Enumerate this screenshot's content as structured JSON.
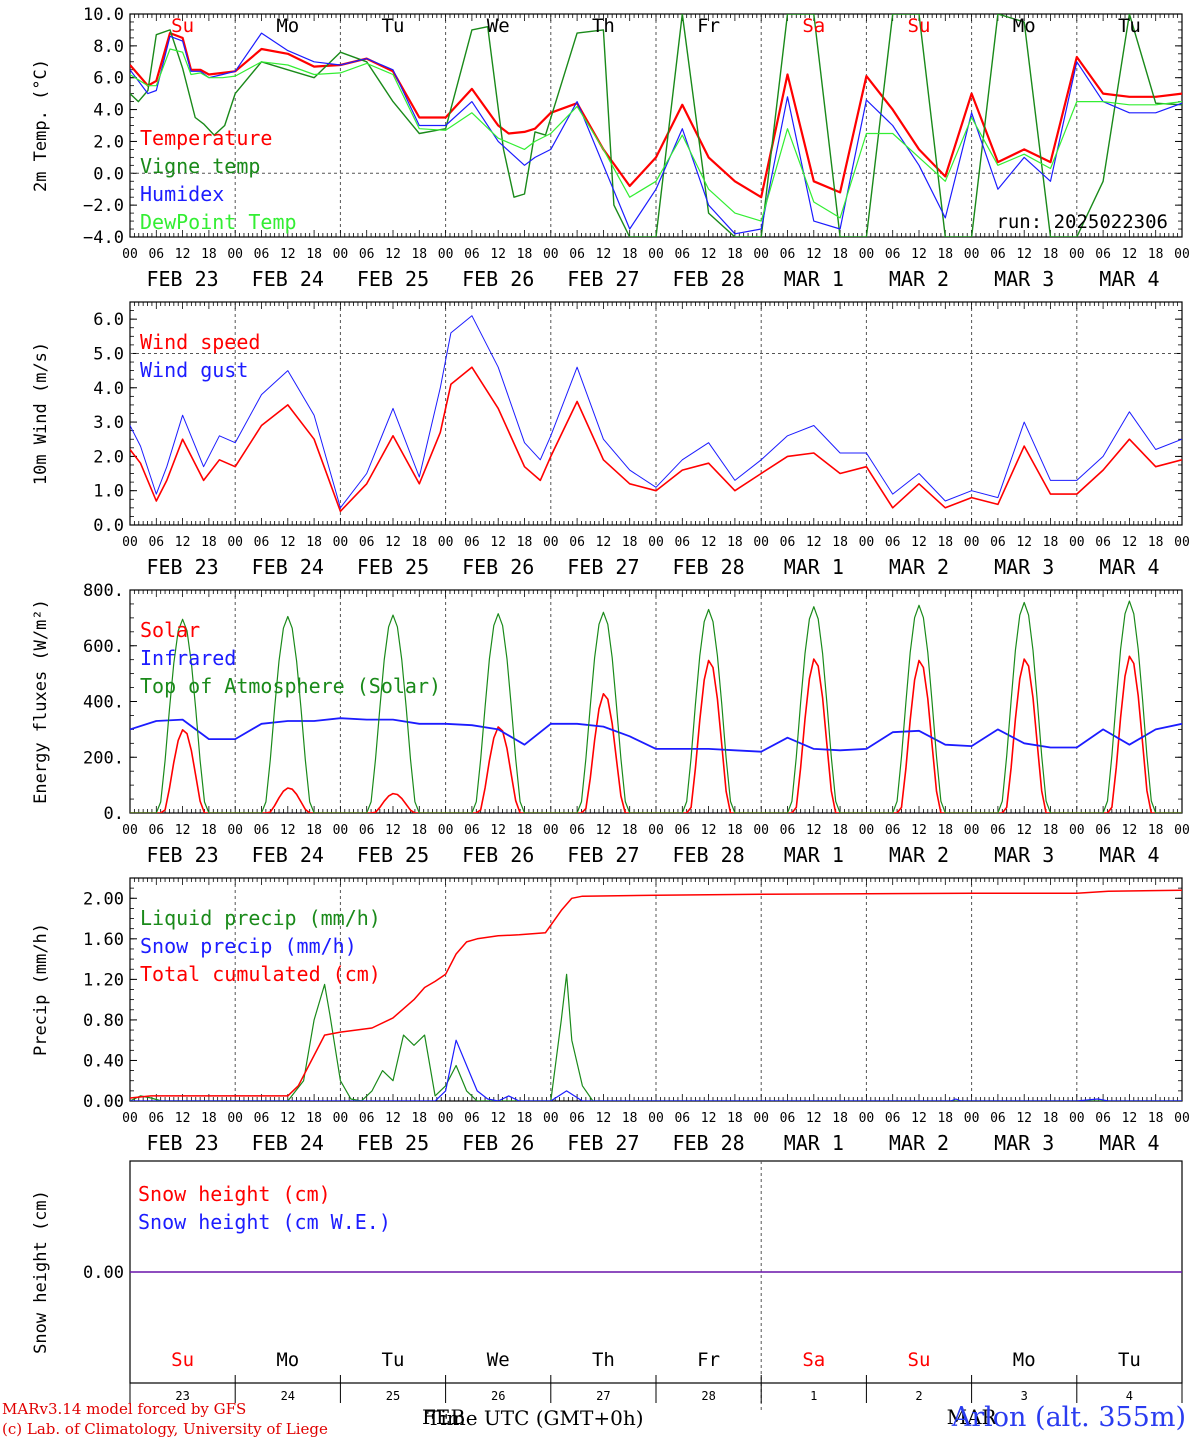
{
  "colors": {
    "red": "#ff0000",
    "green": "#1a8a1a",
    "blue": "#1c1cff",
    "lightgreen": "#33ee33",
    "grid": "#555555"
  },
  "run_label": "run: 2025022306",
  "day_names": [
    "Su",
    "Mo",
    "Tu",
    "We",
    "Th",
    "Fr",
    "Sa",
    "Su",
    "Mo",
    "Tu"
  ],
  "weekend_flags": [
    true,
    false,
    false,
    false,
    false,
    false,
    true,
    true,
    false,
    false
  ],
  "date_labels": [
    "FEB 23",
    "FEB 24",
    "FEB 25",
    "FEB 26",
    "FEB 27",
    "FEB 28",
    "MAR  1",
    "MAR  2",
    "MAR  3",
    "MAR  4"
  ],
  "hour_ticks": [
    "00",
    "06",
    "12",
    "18"
  ],
  "last_hour_tick": "00",
  "day_numbers": [
    "23",
    "24",
    "25",
    "26",
    "27",
    "28",
    "1",
    "2",
    "3",
    "4"
  ],
  "footer": {
    "credit_line1": "MARv3.14 model forced by GFS",
    "credit_line2": "(c) Lab. of Climatology, University of Liege",
    "month_feb": "FEB",
    "month_mar": "MAR",
    "xlabel": "Time UTC (GMT+0h)",
    "station": "Arlon (alt. 355m)"
  },
  "chart_data": [
    {
      "type": "line",
      "ylabel": "2m Temp. (°C)",
      "ylim": [
        -4,
        10
      ],
      "yticks": [
        "10.0",
        "8.0",
        "6.0",
        "4.0",
        "2.0",
        "0.0",
        "−2.0",
        "−4.0"
      ],
      "xlim_days": [
        0,
        10
      ],
      "legend_placement": "top-left",
      "series": [
        {
          "name": "Temperature",
          "color": "red",
          "width": 2.2,
          "x": [
            0,
            0.17,
            0.25,
            0.38,
            0.5,
            0.58,
            0.67,
            0.75,
            0.88,
            1,
            1.25,
            1.5,
            1.75,
            2,
            2.25,
            2.5,
            2.75,
            3,
            3.25,
            3.5,
            3.6,
            3.75,
            3.85,
            4,
            4.25,
            4.5,
            4.75,
            5,
            5.25,
            5.5,
            5.75,
            6,
            6.25,
            6.5,
            6.75,
            7,
            7.25,
            7.5,
            7.75,
            8,
            8.25,
            8.5,
            8.75,
            9,
            9.25,
            9.5,
            9.75,
            10
          ],
          "y": [
            6.8,
            5.5,
            5.8,
            8.8,
            8.5,
            6.5,
            6.5,
            6.2,
            6.3,
            6.4,
            7.8,
            7.5,
            6.7,
            6.8,
            7.2,
            6.4,
            3.5,
            3.5,
            5.3,
            3.0,
            2.5,
            2.6,
            2.8,
            3.8,
            4.4,
            1.5,
            -0.8,
            1.0,
            4.3,
            1.0,
            -0.5,
            -1.5,
            6.2,
            -0.5,
            -1.2,
            6.1,
            4.0,
            1.5,
            -0.2,
            5.0,
            0.7,
            1.5,
            0.7,
            7.3,
            5.0,
            4.8,
            4.8,
            5.0
          ]
        },
        {
          "name": "Vigne temp",
          "color": "green",
          "width": 1.4,
          "x": [
            0,
            0.08,
            0.17,
            0.25,
            0.38,
            0.5,
            0.62,
            0.7,
            0.8,
            0.9,
            1,
            1.25,
            1.5,
            1.75,
            2,
            2.25,
            2.5,
            2.75,
            3,
            3.25,
            3.4,
            3.55,
            3.65,
            3.75,
            3.85,
            3.95,
            4.25,
            4.5,
            4.6,
            4.75,
            4.9,
            5,
            5.25,
            5.5,
            5.75,
            6,
            6.25,
            6.5,
            6.75,
            7,
            7.25,
            7.5,
            7.75,
            8,
            8.25,
            8.5,
            8.75,
            9,
            9.25,
            9.5,
            9.75,
            10
          ],
          "y": [
            5.0,
            4.5,
            5.2,
            8.7,
            9.0,
            6.6,
            3.5,
            3.1,
            2.4,
            3.0,
            5.0,
            7.0,
            6.5,
            6.0,
            7.6,
            7.0,
            4.5,
            2.5,
            2.8,
            9.0,
            9.2,
            1.5,
            -1.5,
            -1.3,
            2.6,
            2.4,
            8.8,
            9.0,
            -2.0,
            -4.0,
            -4.0,
            -4.0,
            10.0,
            -2.5,
            -4.0,
            -4.0,
            10.0,
            10.0,
            -4.0,
            -4.0,
            10.0,
            10.0,
            -4.0,
            -4.0,
            10.0,
            9.5,
            -4.0,
            -4.0,
            -0.5,
            10.0,
            4.4,
            4.3
          ]
        },
        {
          "name": "Humidex",
          "color": "blue",
          "width": 1.2,
          "x": [
            0,
            0.17,
            0.25,
            0.38,
            0.5,
            0.58,
            0.67,
            0.75,
            0.88,
            1,
            1.25,
            1.5,
            1.75,
            2,
            2.25,
            2.5,
            2.75,
            3,
            3.25,
            3.5,
            3.75,
            3.85,
            4,
            4.25,
            4.5,
            4.75,
            5,
            5.25,
            5.5,
            5.75,
            6,
            6.25,
            6.5,
            6.75,
            7,
            7.25,
            7.5,
            7.75,
            8,
            8.25,
            8.5,
            8.75,
            9,
            9.25,
            9.5,
            9.75,
            10
          ],
          "y": [
            6.5,
            5.0,
            5.2,
            8.6,
            8.3,
            6.4,
            6.4,
            6.0,
            6.2,
            6.4,
            8.8,
            7.7,
            7.0,
            6.8,
            7.2,
            6.5,
            3.0,
            3.0,
            4.5,
            2.0,
            0.5,
            1.0,
            1.5,
            4.5,
            0.5,
            -3.5,
            -1.0,
            2.8,
            -2.0,
            -3.8,
            -3.5,
            4.8,
            -3.0,
            -3.5,
            4.6,
            3.0,
            0.5,
            -2.8,
            3.8,
            -1.0,
            1.0,
            -0.5,
            7.0,
            4.5,
            3.8,
            3.8,
            4.4
          ]
        },
        {
          "name": "DewPoint Temp",
          "color": "lightgreen",
          "width": 1.2,
          "x": [
            0,
            0.17,
            0.25,
            0.38,
            0.5,
            0.58,
            0.67,
            0.75,
            0.88,
            1,
            1.25,
            1.5,
            1.75,
            2,
            2.25,
            2.5,
            2.75,
            3,
            3.25,
            3.5,
            3.75,
            3.85,
            4,
            4.25,
            4.5,
            4.75,
            5,
            5.25,
            5.5,
            5.75,
            6,
            6.25,
            6.5,
            6.75,
            7,
            7.25,
            7.5,
            7.75,
            8,
            8.25,
            8.5,
            8.75,
            9,
            9.25,
            9.5,
            9.75,
            10
          ],
          "y": [
            6.2,
            5.5,
            5.5,
            7.8,
            7.6,
            6.2,
            6.3,
            6.0,
            6.0,
            6.1,
            7.0,
            6.8,
            6.2,
            6.3,
            6.9,
            6.2,
            2.8,
            2.7,
            3.8,
            2.2,
            1.5,
            2.0,
            2.5,
            4.2,
            1.5,
            -1.5,
            -0.5,
            2.4,
            -1.0,
            -2.5,
            -3.0,
            2.8,
            -1.8,
            -2.8,
            2.5,
            2.5,
            1.0,
            -0.5,
            3.5,
            0.5,
            1.2,
            0.3,
            4.5,
            4.5,
            4.3,
            4.3,
            4.5
          ]
        }
      ],
      "dashed_hlines": [
        0
      ]
    },
    {
      "type": "line",
      "ylabel": "10m Wind (m/s)",
      "ylim": [
        0,
        6.5
      ],
      "yticks": [
        "6.0",
        "5.0",
        "4.0",
        "3.0",
        "2.0",
        "1.0",
        "0.0"
      ],
      "xlim_days": [
        0,
        10
      ],
      "legend_placement": "top-left",
      "series": [
        {
          "name": "Wind speed",
          "color": "red",
          "width": 1.6,
          "x": [
            0,
            0.1,
            0.25,
            0.35,
            0.5,
            0.7,
            0.85,
            1,
            1.25,
            1.5,
            1.75,
            2,
            2.25,
            2.5,
            2.75,
            2.95,
            3.05,
            3.25,
            3.5,
            3.75,
            3.9,
            4,
            4.25,
            4.5,
            4.75,
            5,
            5.25,
            5.5,
            5.75,
            6,
            6.25,
            6.5,
            6.75,
            7,
            7.25,
            7.5,
            7.75,
            8,
            8.25,
            8.5,
            8.75,
            9,
            9.25,
            9.5,
            9.75,
            10
          ],
          "y": [
            2.2,
            1.8,
            0.7,
            1.3,
            2.5,
            1.3,
            1.9,
            1.7,
            2.9,
            3.5,
            2.5,
            0.4,
            1.2,
            2.6,
            1.2,
            2.7,
            4.1,
            4.6,
            3.4,
            1.7,
            1.3,
            2.0,
            3.6,
            1.9,
            1.2,
            1.0,
            1.6,
            1.8,
            1.0,
            1.5,
            2.0,
            2.1,
            1.5,
            1.7,
            0.5,
            1.2,
            0.5,
            0.8,
            0.6,
            2.3,
            0.9,
            0.9,
            1.6,
            2.5,
            1.7,
            1.9
          ]
        },
        {
          "name": "Wind gust",
          "color": "blue",
          "width": 1.0,
          "x": [
            0,
            0.1,
            0.25,
            0.35,
            0.5,
            0.7,
            0.85,
            1,
            1.25,
            1.5,
            1.75,
            2,
            2.25,
            2.5,
            2.75,
            2.95,
            3.05,
            3.25,
            3.5,
            3.75,
            3.9,
            4,
            4.25,
            4.5,
            4.75,
            5,
            5.25,
            5.5,
            5.75,
            6,
            6.25,
            6.5,
            6.75,
            7,
            7.25,
            7.5,
            7.75,
            8,
            8.25,
            8.5,
            8.75,
            9,
            9.25,
            9.5,
            9.75,
            10
          ],
          "y": [
            2.9,
            2.3,
            0.9,
            1.7,
            3.2,
            1.7,
            2.6,
            2.4,
            3.8,
            4.5,
            3.2,
            0.5,
            1.5,
            3.4,
            1.4,
            4.0,
            5.6,
            6.1,
            4.6,
            2.4,
            1.9,
            2.6,
            4.6,
            2.5,
            1.6,
            1.1,
            1.9,
            2.4,
            1.3,
            1.9,
            2.6,
            2.9,
            2.1,
            2.1,
            0.9,
            1.5,
            0.7,
            1.0,
            0.8,
            3.0,
            1.3,
            1.3,
            2.0,
            3.3,
            2.2,
            2.5
          ]
        }
      ],
      "dashed_hlines": [
        5.0
      ]
    },
    {
      "type": "line",
      "ylabel": "Energy fluxes (W/m²)",
      "ylim": [
        0,
        800
      ],
      "yticks": [
        "800.",
        "600.",
        "400.",
        "200.",
        "0."
      ],
      "xlim_days": [
        0,
        10
      ],
      "legend_placement": "top-left",
      "series": [
        {
          "name": "Solar",
          "color": "red",
          "width": 1.6,
          "daily_peaks": [
            300,
            90,
            70,
            310,
            430,
            550,
            555,
            550,
            555,
            565
          ]
        },
        {
          "name": "Infrared",
          "color": "blue",
          "width": 1.8,
          "x": [
            0,
            0.25,
            0.5,
            0.75,
            1,
            1.25,
            1.5,
            1.75,
            2,
            2.25,
            2.5,
            2.75,
            3,
            3.25,
            3.5,
            3.75,
            4,
            4.25,
            4.5,
            4.75,
            5,
            5.25,
            5.5,
            5.75,
            6,
            6.25,
            6.5,
            6.75,
            7,
            7.25,
            7.5,
            7.75,
            8,
            8.25,
            8.5,
            8.75,
            9,
            9.25,
            9.5,
            9.75,
            10
          ],
          "y": [
            300,
            330,
            335,
            265,
            265,
            320,
            330,
            330,
            340,
            335,
            335,
            320,
            320,
            315,
            300,
            245,
            320,
            320,
            310,
            275,
            230,
            230,
            230,
            225,
            220,
            270,
            230,
            225,
            230,
            290,
            295,
            245,
            240,
            300,
            250,
            235,
            235,
            300,
            245,
            300,
            320
          ]
        },
        {
          "name": "Top of Atmosphere (Solar)",
          "color": "green",
          "width": 1.2,
          "daily_peaks": [
            695,
            705,
            710,
            715,
            720,
            730,
            740,
            745,
            755,
            760
          ]
        }
      ]
    },
    {
      "type": "line",
      "ylabel": "Precip (mm/h)",
      "ylim": [
        0,
        2.2
      ],
      "yticks": [
        "2.00",
        "1.60",
        "1.20",
        "0.80",
        "0.40",
        "0.00"
      ],
      "xlim_days": [
        0,
        10
      ],
      "legend_placement": "top-left",
      "series": [
        {
          "name": "Liquid precip (mm/h)",
          "color": "green",
          "width": 1.2,
          "x": [
            0,
            0.1,
            0.2,
            0.3,
            1.5,
            1.65,
            1.75,
            1.85,
            1.9,
            2.0,
            2.1,
            2.2,
            2.3,
            2.4,
            2.5,
            2.6,
            2.7,
            2.8,
            2.9,
            3.0,
            3.1,
            3.2,
            3.3,
            3.5,
            3.7,
            4.0,
            4.1,
            4.15,
            4.2,
            4.3,
            4.4,
            5,
            6,
            7,
            8,
            9,
            10
          ],
          "y": [
            0,
            0.05,
            0.03,
            0,
            0,
            0.2,
            0.8,
            1.15,
            0.85,
            0.2,
            0.02,
            0,
            0.1,
            0.3,
            0.2,
            0.65,
            0.55,
            0.65,
            0.05,
            0.15,
            0.35,
            0.1,
            0,
            0,
            0,
            0,
            0.8,
            1.25,
            0.6,
            0.15,
            0,
            0,
            0,
            0,
            0,
            0,
            0
          ]
        },
        {
          "name": "Snow precip (mm/h)",
          "color": "blue",
          "width": 1.2,
          "x": [
            0,
            2.9,
            3.0,
            3.1,
            3.2,
            3.3,
            3.4,
            3.5,
            3.6,
            3.7,
            4.0,
            4.15,
            4.3,
            6,
            7.8,
            7.85,
            7.9,
            9,
            9.2,
            9.3,
            10
          ],
          "y": [
            0,
            0,
            0.1,
            0.6,
            0.35,
            0.1,
            0.02,
            0,
            0.05,
            0,
            0,
            0.1,
            0,
            0,
            0,
            0.02,
            0,
            0,
            0.02,
            0,
            0
          ]
        },
        {
          "name": "Total cumulated (cm)",
          "color": "red",
          "width": 1.5,
          "x": [
            0,
            0.2,
            1.5,
            1.6,
            1.75,
            1.85,
            2.0,
            2.3,
            2.5,
            2.7,
            2.8,
            2.9,
            3.0,
            3.1,
            3.2,
            3.3,
            3.5,
            3.7,
            3.95,
            4.1,
            4.2,
            4.3,
            5,
            6,
            7,
            8,
            9,
            9.3,
            10
          ],
          "y": [
            0.03,
            0.05,
            0.05,
            0.15,
            0.45,
            0.65,
            0.68,
            0.72,
            0.82,
            1.0,
            1.12,
            1.18,
            1.25,
            1.45,
            1.57,
            1.6,
            1.63,
            1.64,
            1.66,
            1.88,
            2.0,
            2.02,
            2.03,
            2.04,
            2.045,
            2.05,
            2.05,
            2.07,
            2.08
          ]
        }
      ]
    },
    {
      "type": "line",
      "ylabel": "Snow height (cm)",
      "ylim": [
        -1,
        1
      ],
      "yticks": [
        "0.00"
      ],
      "xlim_days": [
        0,
        10
      ],
      "legend_placement": "top-left",
      "series": [
        {
          "name": "Snow height (cm)",
          "color": "red",
          "width": 1.4,
          "x": [
            0,
            10
          ],
          "y": [
            0,
            0
          ]
        },
        {
          "name": "Snow height (cm W.E.)",
          "color": "blue",
          "width": 1.0,
          "x": [
            0,
            10
          ],
          "y": [
            0,
            0
          ]
        }
      ]
    }
  ]
}
